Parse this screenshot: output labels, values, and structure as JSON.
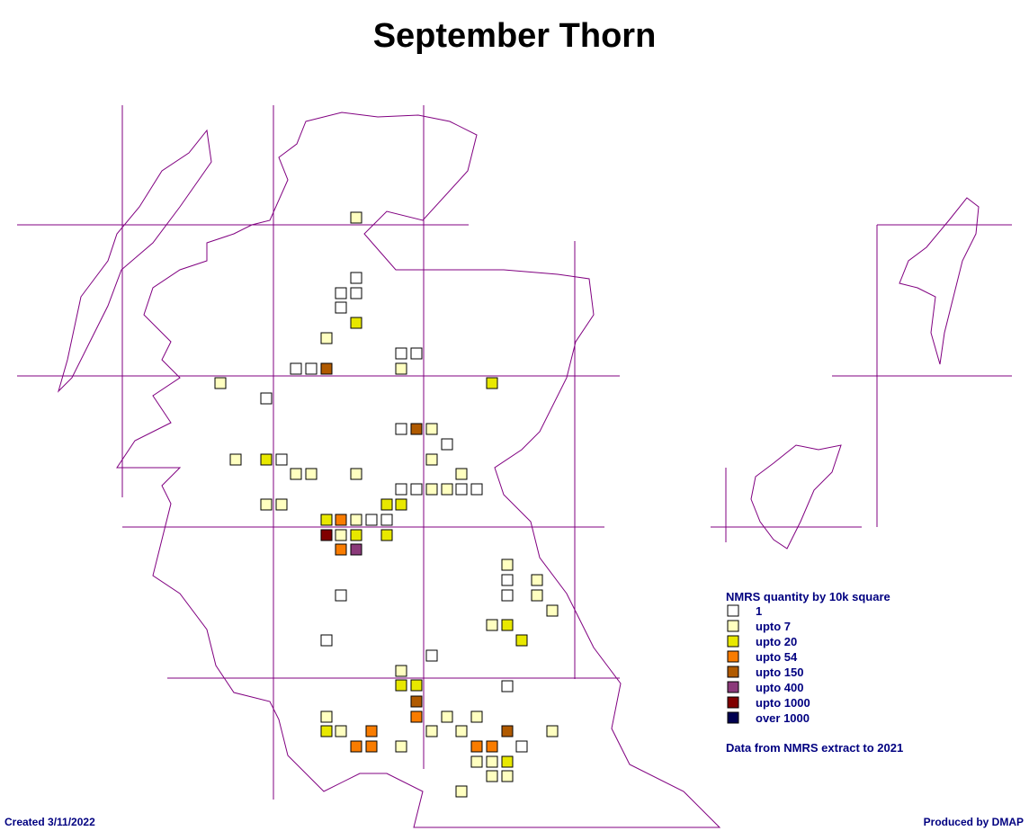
{
  "header": {
    "title": "September Thorn"
  },
  "legend": {
    "title": "NMRS quantity by 10k square",
    "items": [
      {
        "label": "1",
        "color": "#ffffff"
      },
      {
        "label": "upto 7",
        "color": "#ffffc0"
      },
      {
        "label": "upto 20",
        "color": "#e8e800"
      },
      {
        "label": "upto 54",
        "color": "#f97c00"
      },
      {
        "label": "upto 150",
        "color": "#b05a00"
      },
      {
        "label": "upto 400",
        "color": "#8b3a7a"
      },
      {
        "label": "upto 1000",
        "color": "#800000"
      },
      {
        "label": "over 1000",
        "color": "#000050"
      }
    ]
  },
  "note": "Data from NMRS extract to 2021",
  "footer": {
    "created": "Created 3/11/2022",
    "producer": "Produced by DMAP"
  },
  "map": {
    "line_color": "#800080"
  }
}
